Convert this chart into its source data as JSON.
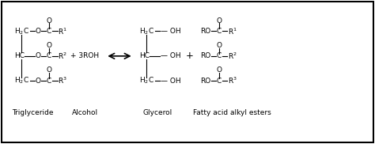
{
  "title": "",
  "background_color": "#ffffff",
  "border_color": "#000000",
  "text_color": "#000000",
  "fig_width": 4.74,
  "fig_height": 1.82,
  "dpi": 100,
  "label_triglyceride": "Triglyceride",
  "label_alcohol": "Alcohol",
  "label_glycerol": "Glycerol",
  "label_fatty": "Fatty acid alkyl esters",
  "reagent": "+ 3ROH",
  "arrow": "⇌",
  "plus2": "+"
}
